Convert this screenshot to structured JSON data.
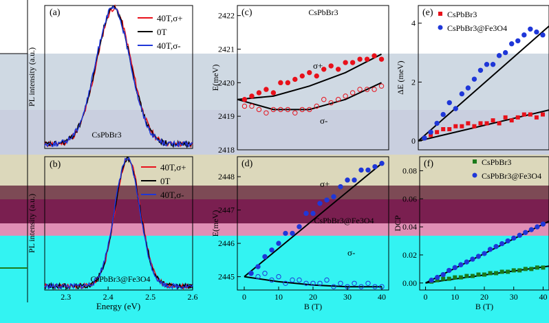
{
  "colors": {
    "red": "#e8101a",
    "black": "#000000",
    "blue": "#1f37d8",
    "green": "#1a7a1a",
    "band_blue_gray": "#cfd9e3",
    "band_gray_blue": "#c9cfdf",
    "band_olive": "#dcd8bb",
    "band_brown": "#7d4a55",
    "band_maroon": "#7a1f50",
    "band_pink": "#e08fb5",
    "band_cyan": "#33f3f2"
  },
  "chart_data": [
    {
      "panel": "a",
      "type": "line",
      "panel_label": "(a)",
      "annotation": "CsPbBr3",
      "ylabel": "PL intensity (a.u.)",
      "xlim": [
        2.28,
        2.58
      ],
      "legend": [
        "40T,σ+",
        "0T",
        "40T,σ-"
      ],
      "series": [
        {
          "name": "40T,σ+",
          "color": "red",
          "center": 2.4205,
          "sigma": 0.035
        },
        {
          "name": "0T",
          "color": "black",
          "center": 2.4195,
          "sigma": 0.035
        },
        {
          "name": "40T,σ-",
          "color": "blue",
          "center": 2.4185,
          "sigma": 0.035
        }
      ]
    },
    {
      "panel": "b",
      "type": "line",
      "panel_label": "(b)",
      "annotation": "CsPbBr3@Fe3O4",
      "ylabel": "PL intensity (a.u.)",
      "xlabel": "Energy (eV)",
      "x_ticks": [
        "2.3",
        "2.4",
        "2.5",
        "2.6"
      ],
      "xlim": [
        2.25,
        2.6
      ],
      "legend": [
        "40T,σ+",
        "0T",
        "40T,σ-"
      ],
      "series": [
        {
          "name": "40T,σ+",
          "color": "red",
          "center": 2.447,
          "sigma": 0.03
        },
        {
          "name": "0T",
          "color": "black",
          "center": 2.446,
          "sigma": 0.03
        },
        {
          "name": "40T,σ-",
          "color": "blue",
          "center": 2.445,
          "sigma": 0.03
        }
      ]
    },
    {
      "panel": "c",
      "type": "scatter",
      "panel_label": "(c)",
      "title": "CsPbBr3",
      "ylabel": "E(meV)",
      "y_ticks": [
        "2418",
        "2419",
        "2420",
        "2421",
        "2422"
      ],
      "ylim": [
        2418,
        2422.3
      ],
      "xlim": [
        0,
        42
      ],
      "series": [
        {
          "name": "σ+",
          "color": "red",
          "filled": true,
          "x": [
            2,
            4,
            6,
            8,
            10,
            12,
            14,
            16,
            18,
            20,
            22,
            24,
            26,
            28,
            30,
            32,
            34,
            36,
            38,
            40
          ],
          "y": [
            2419.5,
            2419.6,
            2419.7,
            2419.8,
            2419.7,
            2420.0,
            2420.0,
            2420.1,
            2420.2,
            2420.3,
            2420.2,
            2420.4,
            2420.5,
            2420.4,
            2420.6,
            2420.6,
            2420.7,
            2420.7,
            2420.8,
            2420.7
          ]
        },
        {
          "name": "σ-",
          "color": "red",
          "filled": false,
          "x": [
            2,
            4,
            6,
            8,
            10,
            12,
            14,
            16,
            18,
            20,
            22,
            24,
            26,
            28,
            30,
            32,
            34,
            36,
            38,
            40
          ],
          "y": [
            2419.3,
            2419.3,
            2419.2,
            2419.1,
            2419.2,
            2419.2,
            2419.2,
            2419.1,
            2419.2,
            2419.2,
            2419.3,
            2419.5,
            2419.4,
            2419.5,
            2419.6,
            2419.7,
            2419.8,
            2419.8,
            2419.8,
            2419.9
          ]
        }
      ],
      "fits": [
        {
          "name": "σ+",
          "x": [
            0,
            10,
            20,
            30,
            40
          ],
          "y": [
            2419.5,
            2419.6,
            2419.9,
            2420.3,
            2420.85
          ]
        },
        {
          "name": "σ-",
          "x": [
            0,
            10,
            20,
            30,
            40
          ],
          "y": [
            2419.5,
            2419.2,
            2419.2,
            2419.5,
            2420.0
          ]
        }
      ],
      "labels": [
        "σ+",
        "σ-"
      ]
    },
    {
      "panel": "d",
      "type": "scatter",
      "panel_label": "(d)",
      "title": "CsPbBr3@Fe3O4",
      "xlabel": "B (T)",
      "ylabel": "E(meV)",
      "x_ticks": [
        "0",
        "10",
        "20",
        "30",
        "40"
      ],
      "y_ticks": [
        "2445",
        "2446",
        "2447",
        "2448"
      ],
      "ylim": [
        2444.6,
        2448.6
      ],
      "xlim": [
        -2,
        42
      ],
      "series": [
        {
          "name": "σ+",
          "color": "blue",
          "filled": true,
          "x": [
            2,
            4,
            6,
            8,
            10,
            12,
            14,
            16,
            18,
            20,
            22,
            24,
            26,
            28,
            30,
            32,
            34,
            36,
            38,
            40
          ],
          "y": [
            2445.1,
            2445.3,
            2445.6,
            2445.8,
            2446.0,
            2446.3,
            2446.3,
            2446.5,
            2446.9,
            2446.9,
            2447.2,
            2447.3,
            2447.4,
            2447.7,
            2447.9,
            2447.9,
            2448.2,
            2448.2,
            2448.3,
            2448.4
          ]
        },
        {
          "name": "σ-",
          "color": "blue",
          "filled": false,
          "x": [
            2,
            4,
            6,
            8,
            10,
            12,
            14,
            16,
            18,
            20,
            22,
            24,
            26,
            28,
            30,
            32,
            34,
            36,
            38,
            40
          ],
          "y": [
            2445.1,
            2445.0,
            2445.1,
            2444.9,
            2445.0,
            2444.8,
            2444.9,
            2444.9,
            2444.8,
            2444.8,
            2444.8,
            2444.9,
            2444.7,
            2444.8,
            2444.7,
            2444.8,
            2444.7,
            2444.8,
            2444.7,
            2444.7
          ]
        }
      ],
      "fits": [
        {
          "name": "σ+",
          "x": [
            0,
            40
          ],
          "y": [
            2445.0,
            2448.4
          ]
        },
        {
          "name": "σ-",
          "x": [
            0,
            10,
            20,
            30,
            40
          ],
          "y": [
            2445.0,
            2444.85,
            2444.75,
            2444.7,
            2444.7
          ]
        }
      ],
      "labels": [
        "σ+",
        "σ-"
      ]
    },
    {
      "panel": "e",
      "type": "scatter",
      "panel_label": "(e)",
      "ylabel": "ΔE (meV)",
      "y_ticks": [
        "0",
        "2",
        "4"
      ],
      "ylim": [
        -0.3,
        4.6
      ],
      "xlim": [
        0,
        42
      ],
      "legend": [
        "CsPbBr3",
        "CsPbBr3@Fe3O4"
      ],
      "series": [
        {
          "name": "CsPbBr3",
          "color": "red",
          "marker": "square",
          "x": [
            2,
            4,
            6,
            8,
            10,
            12,
            14,
            16,
            18,
            20,
            22,
            24,
            26,
            28,
            30,
            32,
            34,
            36,
            38,
            40
          ],
          "y": [
            0.1,
            0.2,
            0.3,
            0.4,
            0.4,
            0.5,
            0.5,
            0.6,
            0.5,
            0.6,
            0.6,
            0.7,
            0.6,
            0.8,
            0.7,
            0.8,
            0.9,
            0.9,
            0.8,
            0.9
          ]
        },
        {
          "name": "CsPbBr3@Fe3O4",
          "color": "blue",
          "marker": "circle",
          "x": [
            2,
            4,
            6,
            8,
            10,
            12,
            14,
            16,
            18,
            20,
            22,
            24,
            26,
            28,
            30,
            32,
            34,
            36,
            38,
            40
          ],
          "y": [
            0.1,
            0.3,
            0.6,
            0.9,
            1.3,
            1.1,
            1.6,
            1.8,
            2.1,
            2.4,
            2.6,
            2.6,
            2.9,
            3.0,
            3.3,
            3.4,
            3.6,
            3.8,
            3.7,
            3.6
          ]
        }
      ],
      "fits": [
        {
          "name": "CsPbBr3",
          "x": [
            0,
            42
          ],
          "y": [
            0,
            1.05
          ]
        },
        {
          "name": "CsPbBr3@Fe3O4",
          "x": [
            0,
            42
          ],
          "y": [
            0,
            3.9
          ]
        }
      ]
    },
    {
      "panel": "f",
      "type": "scatter",
      "panel_label": "(f)",
      "xlabel": "B (T)",
      "ylabel": "DCP",
      "x_ticks": [
        "0",
        "10",
        "20",
        "30",
        "40"
      ],
      "y_ticks": [
        "0.00",
        "0.02",
        "0.04",
        "0.06",
        "0.08"
      ],
      "ylim": [
        -0.005,
        0.09
      ],
      "xlim": [
        -2,
        42
      ],
      "legend": [
        "CsPbBr3",
        "CsPbBr3@Fe3O4"
      ],
      "series": [
        {
          "name": "CsPbBr3",
          "color": "green",
          "marker": "square",
          "x": [
            2,
            4,
            6,
            8,
            10,
            12,
            14,
            16,
            18,
            20,
            22,
            24,
            26,
            28,
            30,
            32,
            34,
            36,
            38,
            40
          ],
          "y": [
            0.001,
            0.002,
            0.003,
            0.003,
            0.004,
            0.004,
            0.005,
            0.005,
            0.006,
            0.006,
            0.007,
            0.007,
            0.008,
            0.008,
            0.009,
            0.009,
            0.01,
            0.01,
            0.011,
            0.011
          ]
        },
        {
          "name": "CsPbBr3@Fe3O4",
          "color": "blue",
          "marker": "circle",
          "x": [
            2,
            4,
            6,
            8,
            10,
            12,
            14,
            16,
            18,
            20,
            22,
            24,
            26,
            28,
            30,
            32,
            34,
            36,
            38,
            40
          ],
          "y": [
            0.002,
            0.004,
            0.006,
            0.009,
            0.011,
            0.013,
            0.015,
            0.017,
            0.019,
            0.021,
            0.024,
            0.026,
            0.028,
            0.03,
            0.032,
            0.034,
            0.036,
            0.038,
            0.04,
            0.042
          ]
        }
      ],
      "fits": [
        {
          "name": "CsPbBr3",
          "x": [
            0,
            42
          ],
          "y": [
            0,
            0.012
          ]
        },
        {
          "name": "CsPbBr3@Fe3O4",
          "x": [
            0,
            42
          ],
          "y": [
            0,
            0.044
          ]
        }
      ]
    }
  ]
}
